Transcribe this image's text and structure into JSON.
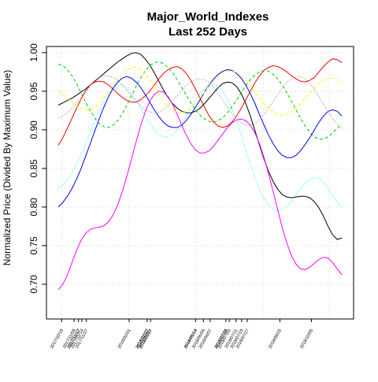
{
  "chart_data": {
    "type": "line",
    "title": "Major_World_Indexes",
    "subtitle": "Last 252 Days",
    "xlabel": "",
    "ylabel": "Normalized Price (Divided By Maximum Value)",
    "ylim": [
      0.655,
      1.008
    ],
    "xlim": [
      0,
      252
    ],
    "grid": true,
    "legend": "none",
    "yticks": [
      0.7,
      0.75,
      0.8,
      0.85,
      0.9,
      0.95,
      1.0
    ],
    "ytick_labels": [
      "0.70",
      "0.75",
      "0.80",
      "0.85",
      "0.90",
      "0.95",
      "1.00"
    ],
    "gridlines_x": [
      3,
      63,
      122,
      182,
      241
    ],
    "xticks": [
      {
        "label": "2017/10/19",
        "x": 3,
        "bold": false
      },
      {
        "label": "2017/11/09",
        "x": 14,
        "bold": false
      },
      {
        "label": "2017/11/17",
        "x": 18,
        "bold": true
      },
      {
        "label": "2017/11/14",
        "x": 21,
        "bold": false
      },
      {
        "label": "2017/11/27",
        "x": 25,
        "bold": false
      },
      {
        "label": "2018/02/01",
        "x": 63,
        "bold": false
      },
      {
        "label": "2018/02/27",
        "x": 79,
        "bold": true
      },
      {
        "label": "2018/03/07",
        "x": 82,
        "bold": true
      },
      {
        "label": "2018/05/14",
        "x": 122,
        "bold": true
      },
      {
        "label": "2018/06/04",
        "x": 129,
        "bold": false
      },
      {
        "label": "2018/06/07",
        "x": 135,
        "bold": false
      },
      {
        "label": "2018/07/20",
        "x": 149,
        "bold": true
      },
      {
        "label": "2018/07/03",
        "x": 152,
        "bold": false
      },
      {
        "label": "2018/07/11",
        "x": 158,
        "bold": false
      },
      {
        "label": "2018/07/19",
        "x": 163,
        "bold": false
      },
      {
        "label": "2018/07/27",
        "x": 168,
        "bold": false
      },
      {
        "label": "2018/09/20",
        "x": 197,
        "bold": false
      },
      {
        "label": "2018/10/05",
        "x": 225,
        "bold": false
      }
    ],
    "series": [
      {
        "color": "#000000",
        "dash": "solid",
        "values": [
          0.932,
          0.935,
          0.938,
          0.941,
          0.945,
          0.949,
          0.953,
          0.958,
          0.963,
          0.968,
          0.973,
          0.978,
          0.983,
          0.988,
          0.992,
          0.996,
          0.999,
          1.0,
          0.998,
          0.992,
          0.984,
          0.974,
          0.963,
          0.952,
          0.942,
          0.934,
          0.928,
          0.924,
          0.922,
          0.922,
          0.924,
          0.928,
          0.934,
          0.941,
          0.948,
          0.955,
          0.96,
          0.962,
          0.961,
          0.956,
          0.947,
          0.934,
          0.918,
          0.899,
          0.88,
          0.862,
          0.846,
          0.833,
          0.823,
          0.816,
          0.813,
          0.812,
          0.813,
          0.814,
          0.814,
          0.812,
          0.807,
          0.799,
          0.788,
          0.775,
          0.764,
          0.758,
          0.76
        ]
      },
      {
        "color": "#ff0000",
        "dash": "solid",
        "values": [
          0.88,
          0.89,
          0.902,
          0.915,
          0.928,
          0.94,
          0.95,
          0.958,
          0.962,
          0.963,
          0.962,
          0.958,
          0.953,
          0.947,
          0.942,
          0.938,
          0.936,
          0.936,
          0.939,
          0.944,
          0.95,
          0.958,
          0.966,
          0.973,
          0.978,
          0.981,
          0.982,
          0.979,
          0.973,
          0.964,
          0.953,
          0.941,
          0.929,
          0.918,
          0.91,
          0.905,
          0.903,
          0.905,
          0.91,
          0.918,
          0.928,
          0.939,
          0.95,
          0.961,
          0.97,
          0.977,
          0.981,
          0.983,
          0.982,
          0.979,
          0.975,
          0.97,
          0.966,
          0.963,
          0.962,
          0.964,
          0.968,
          0.975,
          0.982,
          0.988,
          0.992,
          0.991,
          0.987
        ]
      },
      {
        "color": "#00cd00",
        "dash": "dashed",
        "values": [
          0.985,
          0.983,
          0.978,
          0.97,
          0.96,
          0.948,
          0.936,
          0.925,
          0.915,
          0.908,
          0.904,
          0.903,
          0.906,
          0.912,
          0.921,
          0.932,
          0.944,
          0.956,
          0.967,
          0.976,
          0.983,
          0.987,
          0.988,
          0.986,
          0.981,
          0.974,
          0.965,
          0.955,
          0.945,
          0.935,
          0.926,
          0.919,
          0.914,
          0.911,
          0.91,
          0.912,
          0.916,
          0.922,
          0.93,
          0.939,
          0.948,
          0.957,
          0.965,
          0.971,
          0.975,
          0.977,
          0.976,
          0.972,
          0.966,
          0.958,
          0.948,
          0.937,
          0.926,
          0.915,
          0.905,
          0.897,
          0.891,
          0.888,
          0.888,
          0.891,
          0.896,
          0.902,
          0.908
        ]
      },
      {
        "color": "#0000ff",
        "dash": "solid",
        "values": [
          0.8,
          0.806,
          0.814,
          0.824,
          0.836,
          0.85,
          0.866,
          0.882,
          0.899,
          0.915,
          0.93,
          0.943,
          0.954,
          0.962,
          0.967,
          0.969,
          0.967,
          0.962,
          0.955,
          0.946,
          0.936,
          0.926,
          0.917,
          0.91,
          0.905,
          0.903,
          0.903,
          0.906,
          0.912,
          0.92,
          0.929,
          0.939,
          0.949,
          0.958,
          0.966,
          0.972,
          0.976,
          0.978,
          0.977,
          0.973,
          0.967,
          0.958,
          0.947,
          0.934,
          0.92,
          0.906,
          0.893,
          0.882,
          0.873,
          0.867,
          0.864,
          0.864,
          0.867,
          0.873,
          0.881,
          0.89,
          0.9,
          0.91,
          0.918,
          0.924,
          0.926,
          0.924,
          0.918
        ]
      },
      {
        "color": "#00ffff",
        "dash": "dotted",
        "values": [
          0.825,
          0.829,
          0.835,
          0.844,
          0.855,
          0.868,
          0.882,
          0.897,
          0.912,
          0.926,
          0.938,
          0.948,
          0.955,
          0.958,
          0.958,
          0.954,
          0.947,
          0.938,
          0.928,
          0.918,
          0.908,
          0.9,
          0.894,
          0.891,
          0.891,
          0.894,
          0.9,
          0.908,
          0.918,
          0.928,
          0.938,
          0.947,
          0.954,
          0.958,
          0.959,
          0.956,
          0.95,
          0.94,
          0.927,
          0.911,
          0.893,
          0.874,
          0.855,
          0.838,
          0.823,
          0.811,
          0.802,
          0.797,
          0.795,
          0.797,
          0.801,
          0.808,
          0.816,
          0.824,
          0.831,
          0.836,
          0.838,
          0.837,
          0.832,
          0.824,
          0.815,
          0.806,
          0.8
        ]
      },
      {
        "color": "#ff00ff",
        "dash": "solid",
        "values": [
          0.693,
          0.7,
          0.712,
          0.728,
          0.744,
          0.757,
          0.766,
          0.771,
          0.773,
          0.774,
          0.776,
          0.781,
          0.79,
          0.803,
          0.82,
          0.84,
          0.862,
          0.884,
          0.905,
          0.923,
          0.937,
          0.946,
          0.95,
          0.949,
          0.943,
          0.933,
          0.92,
          0.906,
          0.893,
          0.882,
          0.874,
          0.87,
          0.87,
          0.873,
          0.879,
          0.887,
          0.895,
          0.903,
          0.909,
          0.913,
          0.914,
          0.912,
          0.906,
          0.896,
          0.882,
          0.864,
          0.843,
          0.82,
          0.796,
          0.773,
          0.753,
          0.737,
          0.726,
          0.72,
          0.719,
          0.722,
          0.727,
          0.732,
          0.735,
          0.734,
          0.728,
          0.72,
          0.712
        ]
      },
      {
        "color": "#ffff00",
        "dash": "dashed",
        "values": [
          0.95,
          0.946,
          0.941,
          0.936,
          0.931,
          0.928,
          0.926,
          0.926,
          0.929,
          0.934,
          0.941,
          0.949,
          0.958,
          0.966,
          0.973,
          0.978,
          0.981,
          0.981,
          0.978,
          0.972,
          0.964,
          0.955,
          0.946,
          0.938,
          0.931,
          0.926,
          0.923,
          0.922,
          0.924,
          0.928,
          0.934,
          0.941,
          0.949,
          0.957,
          0.964,
          0.97,
          0.974,
          0.976,
          0.976,
          0.974,
          0.97,
          0.964,
          0.957,
          0.949,
          0.941,
          0.934,
          0.928,
          0.923,
          0.92,
          0.919,
          0.92,
          0.923,
          0.928,
          0.934,
          0.941,
          0.948,
          0.955,
          0.961,
          0.965,
          0.967,
          0.967,
          0.965,
          0.961
        ]
      },
      {
        "color": "#808080",
        "dash": "dotted",
        "values": [
          0.915,
          0.918,
          0.922,
          0.928,
          0.935,
          0.943,
          0.951,
          0.958,
          0.964,
          0.968,
          0.97,
          0.97,
          0.968,
          0.964,
          0.958,
          0.951,
          0.944,
          0.937,
          0.931,
          0.926,
          0.923,
          0.922,
          0.923,
          0.926,
          0.931,
          0.937,
          0.944,
          0.951,
          0.957,
          0.962,
          0.965,
          0.966,
          0.965,
          0.961,
          0.955,
          0.947,
          0.938,
          0.929,
          0.921,
          0.914,
          0.909,
          0.906,
          0.906,
          0.908,
          0.913,
          0.92,
          0.928,
          0.937,
          0.946,
          0.954,
          0.961,
          0.966,
          0.969,
          0.969,
          0.966,
          0.96,
          0.952,
          0.943,
          0.933,
          0.923,
          0.914,
          0.907,
          0.902
        ]
      }
    ]
  }
}
